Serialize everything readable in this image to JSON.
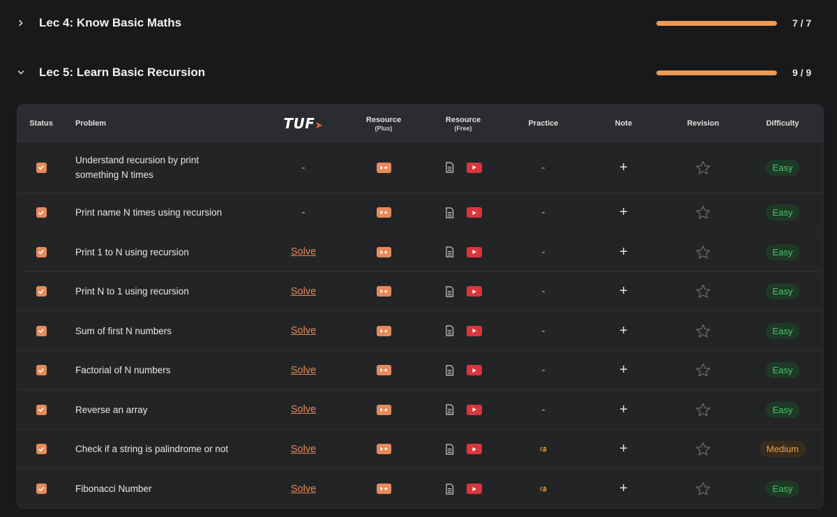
{
  "lectures": [
    {
      "title": "Lec 4: Know Basic Maths",
      "progress_fraction": 1.0,
      "count": "7 / 7",
      "expanded": false
    },
    {
      "title": "Lec 5: Learn Basic Recursion",
      "progress_fraction": 1.0,
      "count": "9 / 9",
      "expanded": true
    }
  ],
  "table": {
    "headers": {
      "status": "Status",
      "problem": "Problem",
      "tuf": "TUF",
      "resource_plus": "Resource",
      "resource_plus_sub": "(Plus)",
      "resource_free": "Resource",
      "resource_free_sub": "(Free)",
      "practice": "Practice",
      "note": "Note",
      "revision": "Revision",
      "difficulty": "Difficulty"
    },
    "rows": [
      {
        "problem": "Understand recursion by print something N times",
        "tuf": "-",
        "practice": "-",
        "note": "+",
        "difficulty": "Easy",
        "completed": true
      },
      {
        "problem": "Print name N times using recursion",
        "tuf": "-",
        "practice": "-",
        "note": "+",
        "difficulty": "Easy",
        "completed": true
      },
      {
        "problem": "Print 1 to N using recursion",
        "tuf": "Solve",
        "practice": "-",
        "note": "+",
        "difficulty": "Easy",
        "completed": true
      },
      {
        "problem": "Print N to 1 using recursion",
        "tuf": "Solve",
        "practice": "-",
        "note": "+",
        "difficulty": "Easy",
        "completed": true
      },
      {
        "problem": "Sum of first N numbers",
        "tuf": "Solve",
        "practice": "-",
        "note": "+",
        "difficulty": "Easy",
        "completed": true
      },
      {
        "problem": "Factorial of N numbers",
        "tuf": "Solve",
        "practice": "-",
        "note": "+",
        "difficulty": "Easy",
        "completed": true
      },
      {
        "problem": "Reverse an array",
        "tuf": "Solve",
        "practice": "-",
        "note": "+",
        "difficulty": "Easy",
        "completed": true
      },
      {
        "problem": "Check if a string is palindrome or not",
        "tuf": "Solve",
        "practice": "",
        "note": "+",
        "difficulty": "Medium",
        "completed": true
      },
      {
        "problem": "Fibonacci Number",
        "tuf": "Solve",
        "practice": "",
        "note": "+",
        "difficulty": "Easy",
        "completed": true
      }
    ]
  },
  "colors": {
    "accent": "#ee9a55",
    "checkbox": "#e58a5a",
    "youtube": "#d9363e",
    "easy": "#4cc46b",
    "medium": "#e8a24a"
  }
}
